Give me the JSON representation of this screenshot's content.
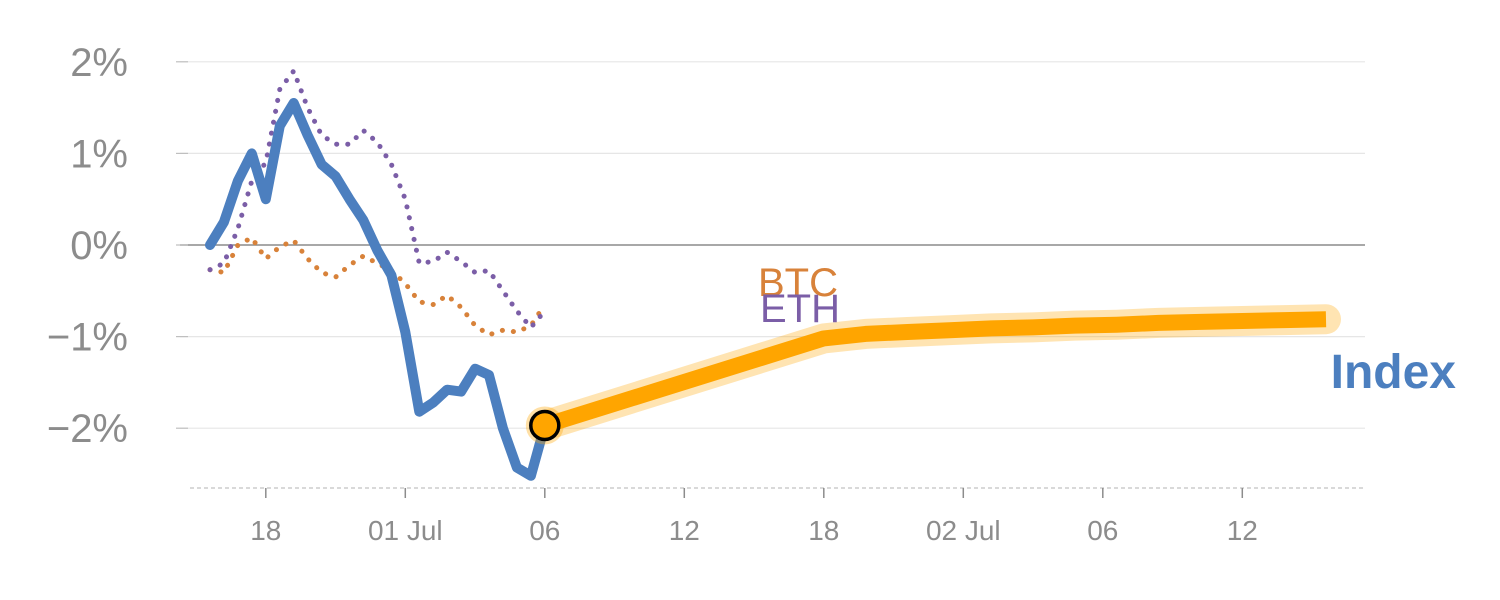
{
  "chart_data": {
    "type": "line",
    "title": "",
    "xlabel": "",
    "ylabel": "",
    "x_tick_labels": [
      "18",
      "01 Jul",
      "06",
      "12",
      "18",
      "02 Jul",
      "06",
      "12"
    ],
    "y_tick_labels": [
      "2%",
      "1%",
      "0%",
      "−1%",
      "−2%"
    ],
    "y_ticks": [
      2,
      1,
      0,
      -1,
      -2
    ],
    "ylim": [
      -2.65,
      2.2
    ],
    "xlim": [
      -2,
      83
    ],
    "grid": true,
    "zero_line": true,
    "series": [
      {
        "name": "Index",
        "color": "#4c7fbf",
        "style": "solid",
        "x": [
          0,
          1,
          2,
          3,
          4,
          5,
          6,
          7,
          8,
          9,
          10,
          11,
          12,
          13,
          14,
          15,
          16,
          17,
          18,
          19,
          20,
          21,
          22,
          23,
          24
        ],
        "y": [
          0.0,
          0.25,
          0.7,
          1.0,
          0.5,
          1.3,
          1.55,
          1.2,
          0.88,
          0.75,
          0.5,
          0.27,
          -0.06,
          -0.33,
          -0.95,
          -1.82,
          -1.72,
          -1.58,
          -1.6,
          -1.35,
          -1.42,
          -2.0,
          -2.43,
          -2.52,
          -1.97
        ]
      },
      {
        "name": "BTC",
        "color": "#d8823a",
        "style": "dotted",
        "x": [
          0,
          1,
          2,
          3,
          4,
          5,
          6,
          7,
          8,
          9,
          10,
          11,
          12,
          13,
          14,
          15,
          16,
          17,
          18,
          19,
          20,
          21,
          22,
          23,
          24
        ],
        "y": [
          -0.27,
          -0.3,
          0.0,
          0.08,
          -0.15,
          -0.02,
          0.05,
          -0.15,
          -0.3,
          -0.35,
          -0.22,
          -0.12,
          -0.2,
          -0.28,
          -0.42,
          -0.62,
          -0.65,
          -0.55,
          -0.68,
          -0.88,
          -0.98,
          -0.93,
          -0.95,
          -0.88,
          -0.65
        ]
      },
      {
        "name": "ETH",
        "color": "#7b5ea7",
        "style": "dotted",
        "x": [
          0,
          1,
          2,
          3,
          4,
          5,
          6,
          7,
          8,
          9,
          10,
          11,
          12,
          13,
          14,
          15,
          16,
          17,
          18,
          19,
          20,
          21,
          22,
          23,
          24
        ],
        "y": [
          -0.27,
          -0.2,
          0.18,
          0.7,
          0.9,
          1.7,
          1.9,
          1.5,
          1.2,
          1.1,
          1.1,
          1.25,
          1.12,
          0.88,
          0.5,
          -0.2,
          -0.18,
          -0.08,
          -0.18,
          -0.3,
          -0.28,
          -0.5,
          -0.72,
          -0.9,
          -0.72
        ]
      },
      {
        "name": "Index forecast",
        "color": "#ffa500",
        "style": "solid-thick",
        "x": [
          24,
          44,
          47,
          50,
          53,
          56,
          59,
          62,
          65,
          68,
          71,
          74,
          77,
          80
        ],
        "y": [
          -1.97,
          -1.02,
          -0.97,
          -0.95,
          -0.93,
          -0.91,
          -0.9,
          -0.88,
          -0.87,
          -0.85,
          -0.84,
          -0.83,
          -0.82,
          -0.81
        ]
      }
    ],
    "highlight_point": {
      "x": 24,
      "y": -1.97,
      "color": "#ffa500"
    },
    "x_ticks": [
      4,
      14,
      24,
      34,
      44,
      54,
      64,
      74
    ],
    "labels": {
      "btc": "BTC",
      "eth": "ETH",
      "index": "Index"
    },
    "colors": {
      "index": "#4c7fbf",
      "btc": "#d8823a",
      "eth": "#7b5ea7",
      "forecast": "#ffa500",
      "grid": "#e6e6e6",
      "zero_line": "#8c8c8c",
      "tick_text": "#8c8c8c"
    }
  }
}
